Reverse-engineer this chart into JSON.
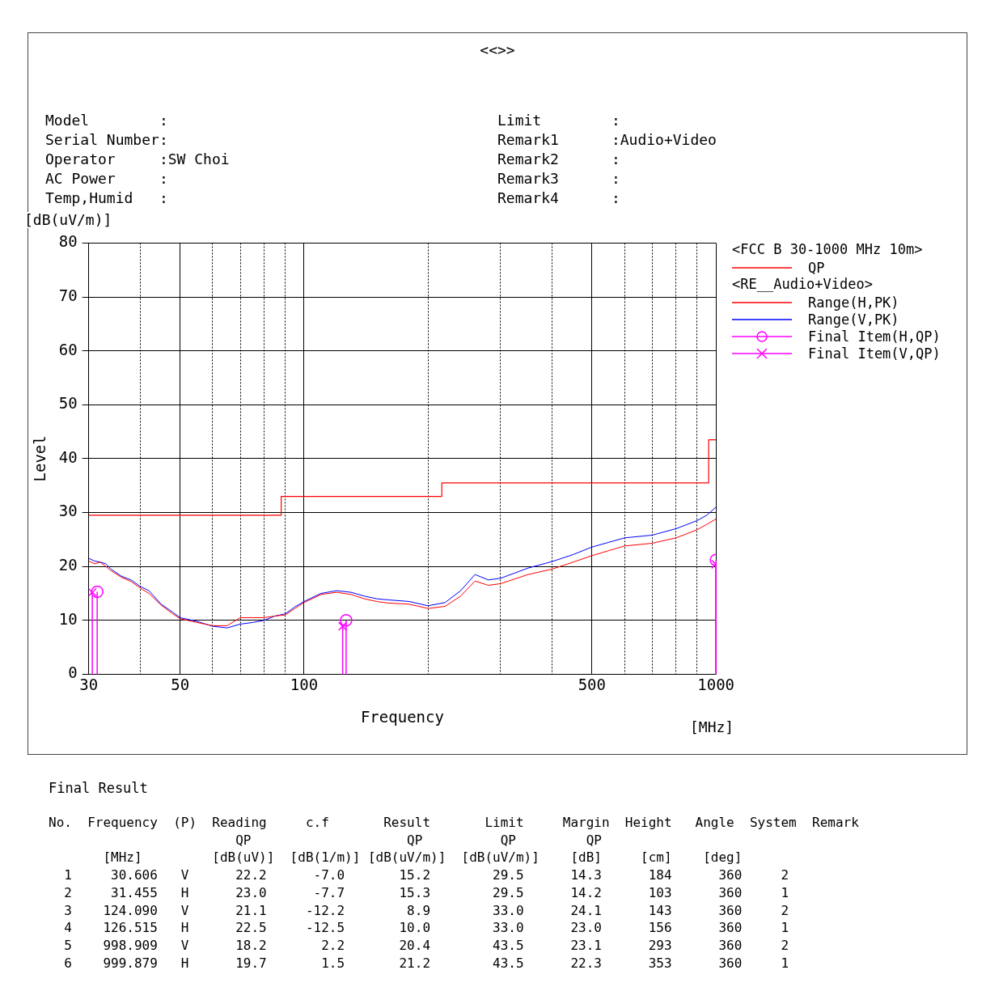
{
  "chart_data": {
    "type": "line",
    "title": "<<>>",
    "xlabel": "Frequency",
    "ylabel": "Level",
    "legend_title": "<FCC B 30-1000 MHz 10m>",
    "annotations": [
      "Model        :",
      "Serial Number:",
      "Operator     :SW Choi",
      "AC Power     :",
      "Temp,Humid   :",
      "Limit        :",
      "Remark1      :Audio+Video",
      "Remark2      :",
      "Remark3      :",
      "Remark4      :",
      "[dB(uV/m)]",
      "[MHz]",
      "<RE__Audio+Video>",
      "Final Result",
      "No.  Frequency  (P)  Reading     c.f       Result       Limit     Margin  Height   Angle  System  Remark",
      "                        QP                    QP          QP         QP",
      "       [MHz]         [dB(uV)]  [dB(1/m)] [dB(uV/m)]  [dB(uV/m)]    [dB]     [cm]    [deg]",
      "  1     30.606   V      22.2      -7.0       15.2        29.5      14.3      184      360     2",
      "  2     31.455   H      23.0      -7.7       15.3        29.5      14.2      103      360     1",
      "  3    124.090   V      21.1     -12.2        8.9        33.0      24.1      143      360     2",
      "  4    126.515   H      22.5     -12.5       10.0        33.0      23.0      156      360     1",
      "  5    998.909   V      18.2       2.2       20.4        43.5      23.1      293      360     2",
      "  6    999.879   H      19.7       1.5       21.2        43.5      22.3      353      360     1"
    ],
    "xlim": [
      30,
      1000
    ],
    "xticks": [
      30,
      {
        "value": 40,
        "label": null
      },
      50,
      {
        "value": 60,
        "label": null
      },
      {
        "value": 70,
        "label": null
      },
      {
        "value": 80,
        "label": null
      },
      {
        "value": 90,
        "label": null
      },
      100,
      {
        "value": 200,
        "label": null
      },
      {
        "value": 300,
        "label": null
      },
      {
        "value": 400,
        "label": null
      },
      500,
      {
        "value": 600,
        "label": null
      },
      {
        "value": 700,
        "label": null
      },
      {
        "value": 800,
        "label": null
      },
      {
        "value": 900,
        "label": null
      },
      1000
    ],
    "ylim": [
      0,
      80
    ],
    "yticks": [
      0,
      10,
      20,
      30,
      40,
      50,
      60,
      70,
      80
    ],
    "log": "x",
    "grid": true,
    "legend": "right",
    "series": [
      {
        "name": "QP",
        "type": "step",
        "color": "#ff0000",
        "x": [
          30,
          88,
          216,
          960,
          1000
        ],
        "values": [
          29.5,
          33.0,
          35.5,
          43.5,
          43.5
        ]
      },
      {
        "name": "Range(H,PK)",
        "color": "#ff0000",
        "x": [
          30,
          31,
          32,
          33,
          34,
          36,
          38,
          40,
          42,
          45,
          48,
          50,
          55,
          60,
          65,
          70,
          75,
          80,
          85,
          90,
          95,
          100,
          110,
          120,
          130,
          140,
          150,
          160,
          180,
          200,
          220,
          240,
          260,
          280,
          300,
          350,
          400,
          450,
          500,
          600,
          700,
          800,
          900,
          950,
          1000
        ],
        "values": [
          21,
          20.5,
          20.8,
          20,
          19.2,
          18,
          17.2,
          16,
          15,
          12.8,
          11.2,
          10.3,
          9.6,
          9,
          9,
          10.5,
          10.5,
          10.5,
          10.8,
          11,
          12.2,
          13.3,
          14.8,
          15.2,
          14.8,
          14,
          13.5,
          13.2,
          13,
          12.2,
          12.6,
          14.5,
          17.3,
          16.5,
          16.8,
          18.5,
          19.5,
          20.8,
          22,
          23.8,
          24.3,
          25.3,
          26.8,
          27.8,
          28.8
        ]
      },
      {
        "name": "Range(V,PK)",
        "color": "#0000ff",
        "x": [
          30,
          31,
          32,
          33,
          34,
          36,
          38,
          40,
          42,
          45,
          48,
          50,
          55,
          60,
          65,
          70,
          75,
          80,
          85,
          90,
          95,
          100,
          110,
          120,
          130,
          140,
          150,
          160,
          180,
          200,
          220,
          240,
          260,
          280,
          300,
          350,
          400,
          450,
          500,
          600,
          700,
          800,
          900,
          950,
          1000
        ],
        "values": [
          21.5,
          21,
          20.8,
          20.5,
          19.5,
          18.2,
          17.5,
          16.3,
          15.5,
          13,
          11.5,
          10.5,
          9.8,
          8.9,
          8.6,
          9.3,
          9.6,
          10,
          10.8,
          11.2,
          12.5,
          13.5,
          15,
          15.5,
          15.2,
          14.5,
          14,
          13.8,
          13.5,
          12.7,
          13.3,
          15.5,
          18.5,
          17.5,
          17.8,
          19.7,
          20.9,
          22.2,
          23.6,
          25.3,
          25.8,
          27,
          28.5,
          29.5,
          31
        ]
      },
      {
        "name": "Final Item(H,QP)",
        "type": "scatter",
        "marker": "circle",
        "color": "#ff00ff",
        "x": [
          31.455,
          126.515,
          999.879
        ],
        "values": [
          15.3,
          10.0,
          21.2
        ],
        "errors": [
          [
            0,
            15.3
          ],
          [
            0,
            10.0
          ],
          [
            0,
            21.2
          ]
        ]
      },
      {
        "name": "Final Item(V,QP)",
        "type": "scatter",
        "marker": "cross",
        "color": "#ff00ff",
        "x": [
          30.606,
          124.09,
          998.909
        ],
        "values": [
          15.2,
          8.9,
          20.4
        ],
        "errors": [
          [
            0,
            15.2
          ],
          [
            0,
            8.9
          ],
          [
            0,
            20.4
          ]
        ]
      }
    ]
  }
}
